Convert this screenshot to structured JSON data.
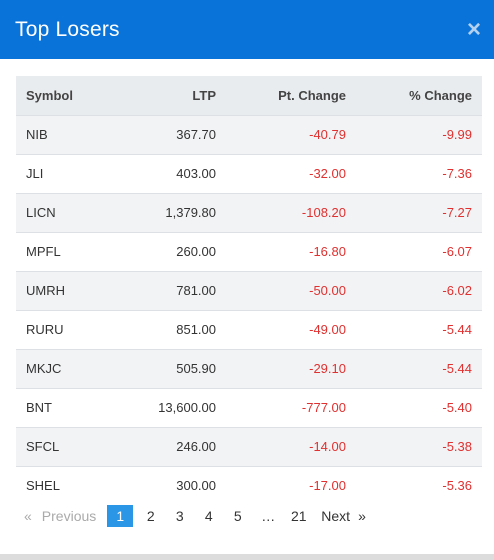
{
  "modal": {
    "title": "Top Losers",
    "close_glyph": "×"
  },
  "table": {
    "headers": {
      "symbol": "Symbol",
      "ltp": "LTP",
      "pt_change": "Pt. Change",
      "pct_change": "% Change"
    },
    "rows": [
      {
        "symbol": "NIB",
        "ltp": "367.70",
        "pt_change": "-40.79",
        "pct_change": "-9.99"
      },
      {
        "symbol": "JLI",
        "ltp": "403.00",
        "pt_change": "-32.00",
        "pct_change": "-7.36"
      },
      {
        "symbol": "LICN",
        "ltp": "1,379.80",
        "pt_change": "-108.20",
        "pct_change": "-7.27"
      },
      {
        "symbol": "MPFL",
        "ltp": "260.00",
        "pt_change": "-16.80",
        "pct_change": "-6.07"
      },
      {
        "symbol": "UMRH",
        "ltp": "781.00",
        "pt_change": "-50.00",
        "pct_change": "-6.02"
      },
      {
        "symbol": "RURU",
        "ltp": "851.00",
        "pt_change": "-49.00",
        "pct_change": "-5.44"
      },
      {
        "symbol": "MKJC",
        "ltp": "505.90",
        "pt_change": "-29.10",
        "pct_change": "-5.44"
      },
      {
        "symbol": "BNT",
        "ltp": "13,600.00",
        "pt_change": "-777.00",
        "pct_change": "-5.40"
      },
      {
        "symbol": "SFCL",
        "ltp": "246.00",
        "pt_change": "-14.00",
        "pct_change": "-5.38"
      },
      {
        "symbol": "SHEL",
        "ltp": "300.00",
        "pt_change": "-17.00",
        "pct_change": "-5.36"
      }
    ]
  },
  "pagination": {
    "prev_arrow": "«",
    "prev_label": "Previous",
    "pages": [
      "1",
      "2",
      "3",
      "4",
      "5"
    ],
    "active_page": "1",
    "ellipsis": "…",
    "last_page": "21",
    "next_label": "Next",
    "next_arrow": "»"
  },
  "colors": {
    "header_bg": "#0a73d9",
    "negative": "#e0302f",
    "active_page": "#2b96e6"
  }
}
